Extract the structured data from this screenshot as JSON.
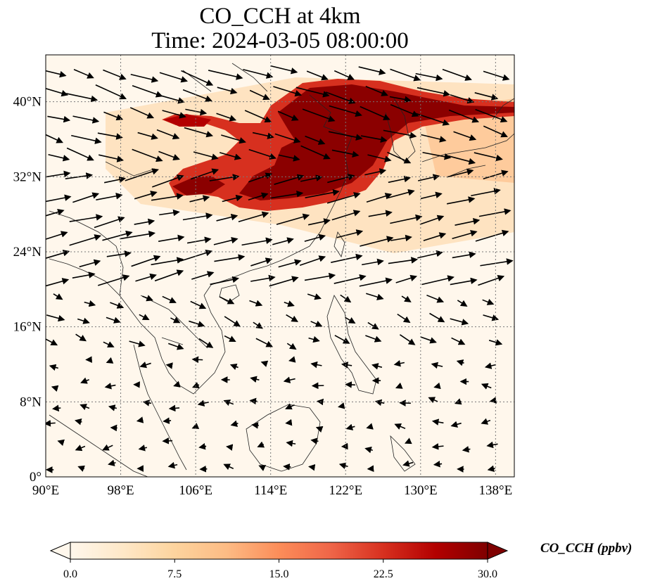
{
  "title": {
    "line1": "CO_CCH at 4km",
    "line2": "Time: 2024-03-05 08:00:00"
  },
  "map": {
    "variable": "CO_CCH",
    "level": "4km",
    "time": "2024-03-05 08:00:00",
    "lon_range": [
      90,
      140
    ],
    "lat_range": [
      0,
      45
    ],
    "x_ticks": [
      "90°E",
      "98°E",
      "106°E",
      "114°E",
      "122°E",
      "130°E",
      "138°E"
    ],
    "x_tick_values": [
      90,
      98,
      106,
      114,
      122,
      130,
      138
    ],
    "y_ticks": [
      "0°",
      "8°N",
      "16°N",
      "24°N",
      "32°N",
      "40°N"
    ],
    "y_tick_values": [
      0,
      8,
      16,
      24,
      32,
      40
    ],
    "gridlines": true,
    "plume_color_high": "#7f0000",
    "plume_color_mid": "#d7301f",
    "background_color": "#fff7ec",
    "wind_vectors": "black arrows, predominantly westerly north of 20°N, weaker and easterly south of 16°N"
  },
  "colorbar": {
    "label": "CO_CCH (ppbv)",
    "ticks": [
      "0.0",
      "7.5",
      "15.0",
      "22.5",
      "30.0"
    ],
    "tick_values": [
      0,
      7.5,
      15,
      22.5,
      30
    ],
    "colormap": "OrRd",
    "colors": [
      "#fff7ec",
      "#fee8c8",
      "#fdd49e",
      "#fdbb84",
      "#fc8d59",
      "#ef6548",
      "#d7301f",
      "#b30000",
      "#7f0000"
    ],
    "extend": "both"
  }
}
